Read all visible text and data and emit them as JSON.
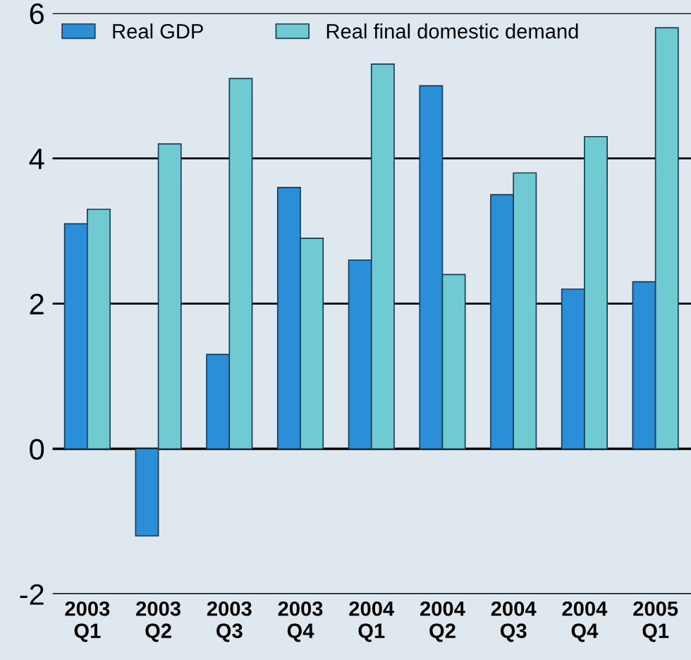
{
  "chart_data": {
    "type": "bar",
    "categories": [
      "2003\nQ1",
      "2003\nQ2",
      "2003\nQ3",
      "2003\nQ4",
      "2004\nQ1",
      "2004\nQ2",
      "2004\nQ3",
      "2004\nQ4",
      "2005\nQ1"
    ],
    "series": [
      {
        "name": "Real GDP",
        "color": "#2b8fd8",
        "values": [
          3.1,
          -1.2,
          1.3,
          3.6,
          2.6,
          5.0,
          3.5,
          2.2,
          2.3
        ]
      },
      {
        "name": "Real final domestic demand",
        "color": "#6fcbd1",
        "values": [
          3.3,
          4.2,
          5.1,
          2.9,
          5.3,
          2.4,
          3.8,
          4.3,
          5.8
        ]
      }
    ],
    "ylim": [
      -2,
      6
    ],
    "yticks": [
      -2,
      0,
      2,
      4,
      6
    ],
    "grid": "y",
    "legend": "top left"
  }
}
